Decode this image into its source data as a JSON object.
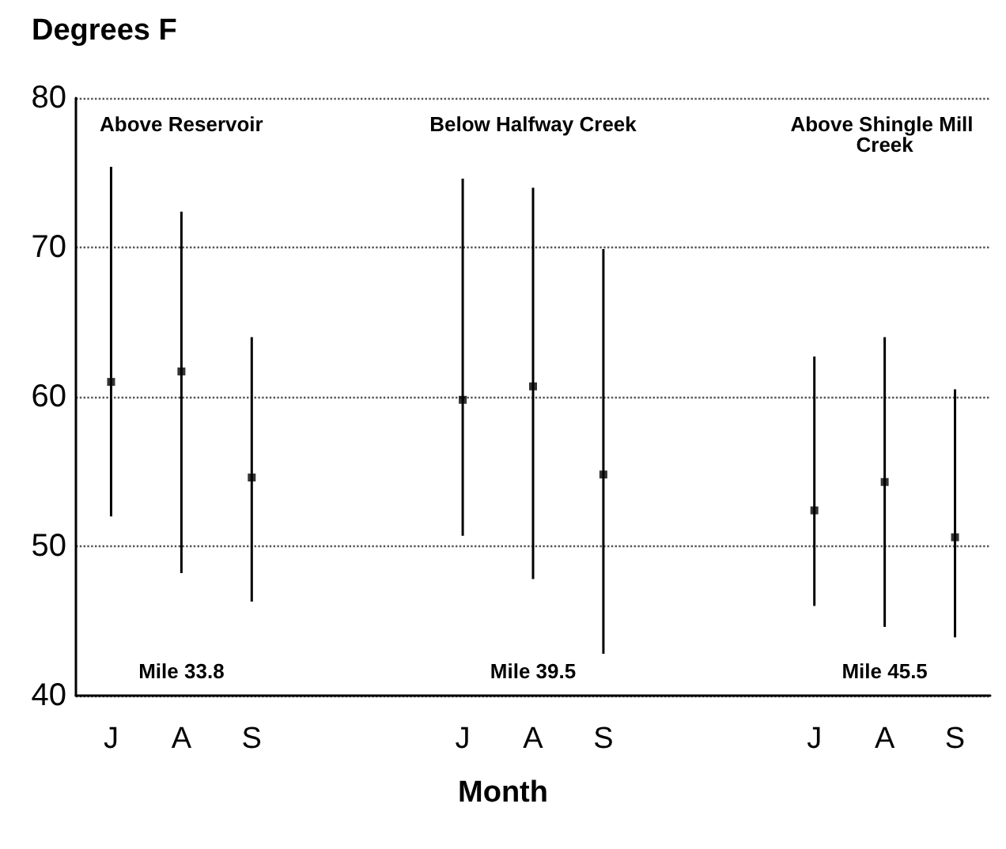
{
  "chart_data": {
    "type": "scatter",
    "ylabel": "Degrees F",
    "xlabel": "Month",
    "categories": [
      "J",
      "A",
      "S",
      null,
      null,
      "J",
      "A",
      "S",
      null,
      null,
      "J",
      "A",
      "S"
    ],
    "values": [
      61,
      61.7,
      54.6,
      null,
      null,
      59.8,
      60.7,
      54.8,
      null,
      null,
      52.4,
      54.3,
      50.6
    ],
    "errors": [
      [
        52,
        75.4
      ],
      [
        48.2,
        72.4
      ],
      [
        46.3,
        64
      ],
      null,
      null,
      [
        50.7,
        74.6
      ],
      [
        47.8,
        74
      ],
      [
        42.8,
        69.9
      ],
      null,
      null,
      [
        46,
        62.7
      ],
      [
        44.6,
        64
      ],
      [
        43.9,
        60.5
      ]
    ],
    "color": "#000000",
    "marker": "square",
    "ylim": [
      40,
      80
    ],
    "yticks": [
      40,
      50,
      60,
      70,
      80
    ],
    "grid": "y",
    "annotations": [
      "Above Reservoir",
      "Below Halfway Creek",
      "Above Shingle Mill Creek",
      "Mile 33.8",
      "Mile 39.5",
      "Mile 45.5"
    ]
  }
}
